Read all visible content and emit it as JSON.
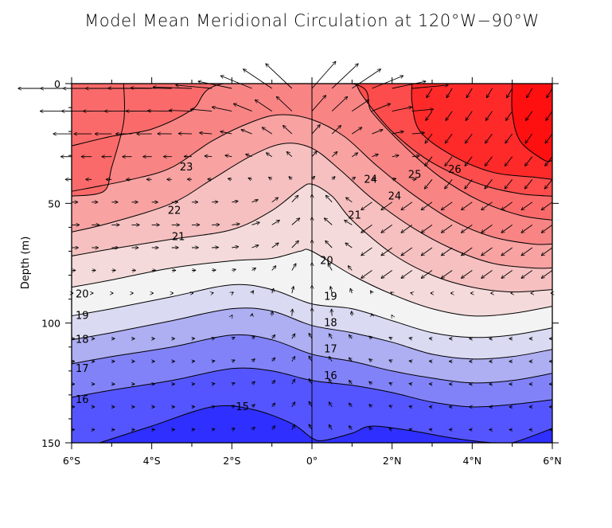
{
  "chart_data": {
    "type": "contour",
    "title": "Model Mean Meridional Circulation at 120°W−90°W",
    "xlabel": "",
    "ylabel": "Depth (m)",
    "xlim": [
      -6,
      6
    ],
    "ylim": [
      150,
      0
    ],
    "x_ticks": [
      -6,
      -4,
      -2,
      0,
      2,
      4,
      6
    ],
    "x_tick_labels": [
      "6°S",
      "4°S",
      "2°S",
      "0°",
      "2°N",
      "4°N",
      "6°N"
    ],
    "y_ticks": [
      0,
      50,
      100,
      150
    ],
    "y_tick_labels": [
      "0",
      "50",
      "100",
      "150"
    ],
    "grid": false,
    "field": "temperature (°C) with meridional-vertical velocity vectors",
    "contour_levels": [
      15,
      16,
      17,
      18,
      19,
      20,
      21,
      22,
      23,
      24,
      25,
      26
    ],
    "contour_labels": [
      "15",
      "16",
      "17",
      "18",
      "19",
      "20",
      "21",
      "22",
      "23",
      "24",
      "25",
      "26"
    ],
    "level_colors": {
      "below_15": "#2f2fff",
      "15": "#5555ff",
      "16": "#8282f8",
      "17": "#aeaef2",
      "18": "#dadaf2",
      "19": "#f3f3f3",
      "20": "#f4dada",
      "21": "#f6c0c0",
      "22": "#f8a2a2",
      "23": "#f98484",
      "24": "#fb6a6a",
      "25": "#fd4c4c",
      "26": "#fe2a2a",
      "above_26": "#ff1010"
    },
    "isotherms": [
      {
        "level": 15,
        "points": [
          [
            -5.3,
            150
          ],
          [
            -4,
            143
          ],
          [
            -2.5,
            135
          ],
          [
            -1.5,
            136
          ],
          [
            -0.5,
            142
          ],
          [
            0,
            148
          ],
          [
            0.3,
            149
          ],
          [
            1,
            146
          ],
          [
            1.5,
            143
          ],
          [
            2.5,
            145
          ],
          [
            3.5,
            148
          ],
          [
            4.5,
            150
          ],
          [
            5,
            150
          ],
          [
            6,
            144
          ]
        ]
      },
      {
        "level": 16,
        "points": [
          [
            -6,
            131
          ],
          [
            -5,
            128
          ],
          [
            -3.5,
            124
          ],
          [
            -2,
            119
          ],
          [
            -1,
            120
          ],
          [
            0,
            124
          ],
          [
            1,
            126
          ],
          [
            2,
            129
          ],
          [
            3,
            133
          ],
          [
            4,
            135
          ],
          [
            5,
            134
          ],
          [
            6,
            132
          ]
        ]
      },
      {
        "level": 17,
        "points": [
          [
            -6,
            117
          ],
          [
            -5,
            114
          ],
          [
            -3.5,
            110
          ],
          [
            -2,
            105
          ],
          [
            -1,
            107
          ],
          [
            0,
            113
          ],
          [
            1,
            116
          ],
          [
            2,
            120
          ],
          [
            3,
            123
          ],
          [
            4,
            125
          ],
          [
            5,
            124
          ],
          [
            6,
            121
          ]
        ]
      },
      {
        "level": 18,
        "points": [
          [
            -6,
            107
          ],
          [
            -5,
            104
          ],
          [
            -3.5,
            99
          ],
          [
            -2,
            94
          ],
          [
            -1,
            95
          ],
          [
            0,
            101
          ],
          [
            1,
            104
          ],
          [
            2,
            108
          ],
          [
            3,
            113
          ],
          [
            4,
            115
          ],
          [
            5,
            114
          ],
          [
            6,
            111
          ]
        ]
      },
      {
        "level": 19,
        "points": [
          [
            -6,
            97
          ],
          [
            -5,
            94
          ],
          [
            -3.5,
            89
          ],
          [
            -2,
            84
          ],
          [
            -1,
            86
          ],
          [
            0,
            92
          ],
          [
            1,
            94
          ],
          [
            2,
            99
          ],
          [
            3,
            104
          ],
          [
            4,
            106
          ],
          [
            5,
            105
          ],
          [
            6,
            102
          ]
        ]
      },
      {
        "level": 20,
        "points": [
          [
            -6,
            85
          ],
          [
            -5,
            82
          ],
          [
            -3.5,
            77
          ],
          [
            -2,
            74
          ],
          [
            -1,
            73
          ],
          [
            -0.3,
            70
          ],
          [
            0,
            70
          ],
          [
            1,
            80
          ],
          [
            2,
            88
          ],
          [
            3,
            94
          ],
          [
            4,
            97
          ],
          [
            5,
            96
          ],
          [
            6,
            93
          ]
        ]
      },
      {
        "level": 21,
        "points": [
          [
            -6,
            72
          ],
          [
            -5,
            69
          ],
          [
            -3.5,
            65
          ],
          [
            -2,
            61
          ],
          [
            -1,
            53
          ],
          [
            -0.3,
            44
          ],
          [
            0,
            42
          ],
          [
            0.5,
            47
          ],
          [
            1,
            57
          ],
          [
            2,
            71
          ],
          [
            3,
            80
          ],
          [
            4,
            85
          ],
          [
            5,
            87
          ],
          [
            6,
            86
          ]
        ]
      },
      {
        "level": 22,
        "points": [
          [
            -6,
            62
          ],
          [
            -5,
            58
          ],
          [
            -3.5,
            50
          ],
          [
            -2.5,
            40
          ],
          [
            -1.5,
            30
          ],
          [
            -0.7,
            25
          ],
          [
            0,
            27
          ],
          [
            0.7,
            36
          ],
          [
            1.5,
            48
          ],
          [
            2.5,
            60
          ],
          [
            3.5,
            69
          ],
          [
            4.5,
            75
          ],
          [
            5.5,
            77
          ],
          [
            6,
            77
          ]
        ]
      },
      {
        "level": 23,
        "points": [
          [
            -6,
            45
          ],
          [
            -4.5,
            40
          ],
          [
            -3.5,
            35
          ],
          [
            -2.5,
            24
          ],
          [
            -1.5,
            16
          ],
          [
            -0.8,
            13
          ],
          [
            0,
            15
          ],
          [
            0.8,
            22
          ],
          [
            1.6,
            34
          ],
          [
            2.5,
            46
          ],
          [
            3.5,
            57
          ],
          [
            4.5,
            64
          ],
          [
            5.5,
            67
          ],
          [
            6,
            67
          ]
        ]
      },
      {
        "level": 24,
        "points": [
          [
            -6,
            26
          ],
          [
            -5,
            22
          ],
          [
            -4,
            19
          ],
          [
            -3,
            11
          ],
          [
            -2.2,
            0
          ],
          [
            1.0,
            0
          ],
          [
            1.5,
            12
          ],
          [
            2.3,
            26
          ],
          [
            3.2,
            39
          ],
          [
            4.2,
            49
          ],
          [
            5.2,
            55
          ],
          [
            6,
            57
          ]
        ]
      },
      {
        "level": 25,
        "points": [
          [
            -4.7,
            0
          ],
          [
            -4.7,
            16
          ],
          [
            -5.0,
            35
          ],
          [
            -5.2,
            45
          ],
          [
            -6,
            47
          ]
        ]
      },
      {
        "level": 25,
        "points": [
          [
            1.1,
            0
          ],
          [
            1.3,
            6
          ],
          [
            2.0,
            20
          ],
          [
            3.0,
            33
          ],
          [
            4.2,
            42
          ],
          [
            5.2,
            46
          ],
          [
            6,
            47
          ]
        ]
      },
      {
        "level": 26,
        "points": [
          [
            2.5,
            0
          ],
          [
            2.5,
            8
          ],
          [
            2.7,
            20
          ],
          [
            3.5,
            30
          ],
          [
            4.5,
            37
          ],
          [
            5.5,
            39
          ],
          [
            6,
            40
          ]
        ]
      },
      {
        "level": 26.5,
        "points": [
          [
            5.0,
            0
          ],
          [
            5.0,
            12
          ],
          [
            5.2,
            24
          ],
          [
            5.8,
            32
          ],
          [
            6,
            32
          ]
        ]
      }
    ],
    "label_positions": [
      {
        "text": "23",
        "x": -3.3,
        "y": 35
      },
      {
        "text": "22",
        "x": -3.6,
        "y": 53
      },
      {
        "text": "21",
        "x": -3.5,
        "y": 64
      },
      {
        "text": "20",
        "x": -5.9,
        "y": 88
      },
      {
        "text": "19",
        "x": -5.9,
        "y": 97
      },
      {
        "text": "18",
        "x": -5.9,
        "y": 107
      },
      {
        "text": "17",
        "x": -5.9,
        "y": 119
      },
      {
        "text": "16",
        "x": -5.9,
        "y": 132
      },
      {
        "text": "15",
        "x": -1.9,
        "y": 135
      },
      {
        "text": "24",
        "x": 1.3,
        "y": 40
      },
      {
        "text": "24",
        "x": 1.9,
        "y": 47
      },
      {
        "text": "25",
        "x": 2.4,
        "y": 38
      },
      {
        "text": "26",
        "x": 3.4,
        "y": 36
      },
      {
        "text": "21",
        "x": 0.9,
        "y": 55
      },
      {
        "text": "20",
        "x": 0.2,
        "y": 74
      },
      {
        "text": "19",
        "x": 0.3,
        "y": 89
      },
      {
        "text": "18",
        "x": 0.3,
        "y": 100
      },
      {
        "text": "17",
        "x": 0.3,
        "y": 111
      },
      {
        "text": "16",
        "x": 0.3,
        "y": 122
      }
    ],
    "vectors_description": "meridional/vertical velocity arrows on a regular grid; strong poleward divergence and upwelling in the upper 40 m near the equator, convergence below 50 m"
  }
}
